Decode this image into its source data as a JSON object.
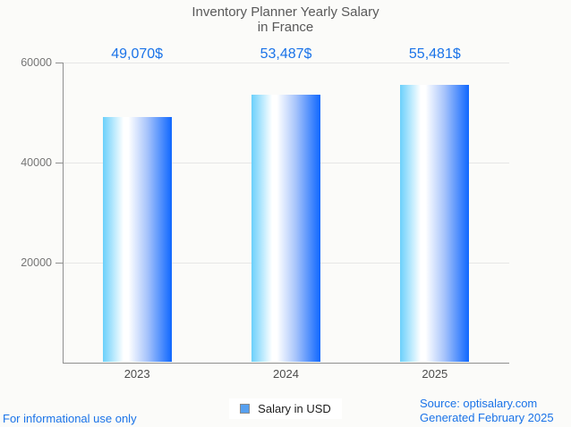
{
  "title": {
    "line1": "Inventory Planner Yearly Salary",
    "line2": "in France"
  },
  "chart_data": {
    "type": "bar",
    "categories": [
      "2023",
      "2024",
      "2025"
    ],
    "values": [
      49070,
      53487,
      55481
    ],
    "value_labels": [
      "49,070$",
      "53,487$",
      "55,481$"
    ],
    "series": [
      {
        "name": "Salary in USD",
        "values": [
          49070,
          53487,
          55481
        ]
      }
    ],
    "title": "Inventory Planner Yearly Salary in France",
    "xlabel": "",
    "ylabel": "",
    "yticks": [
      20000,
      40000,
      60000
    ],
    "ytick_labels": [
      "20000",
      "40000",
      "60000"
    ],
    "ylim": [
      0,
      60000
    ],
    "grid": true,
    "legend_position": "bottom",
    "bar_gradient": [
      "#6bd0fb",
      "#ffffff",
      "#0f67fe"
    ]
  },
  "legend": {
    "label": "Salary in USD",
    "swatch_color": "#57a0f0"
  },
  "footer": {
    "left": "For informational use only",
    "source": "Source: optisalary.com",
    "generated": "Generated February 2025"
  },
  "colors": {
    "background": "#fbfbf9",
    "annotation_text": "#1a73e8",
    "title_text": "#595959",
    "axis_line": "#8f8f8f",
    "gridline": "#e6e6e6",
    "ytick_text": "#757575",
    "xtick_text": "#4c4c4c",
    "footer_text": "#1a73e8"
  }
}
